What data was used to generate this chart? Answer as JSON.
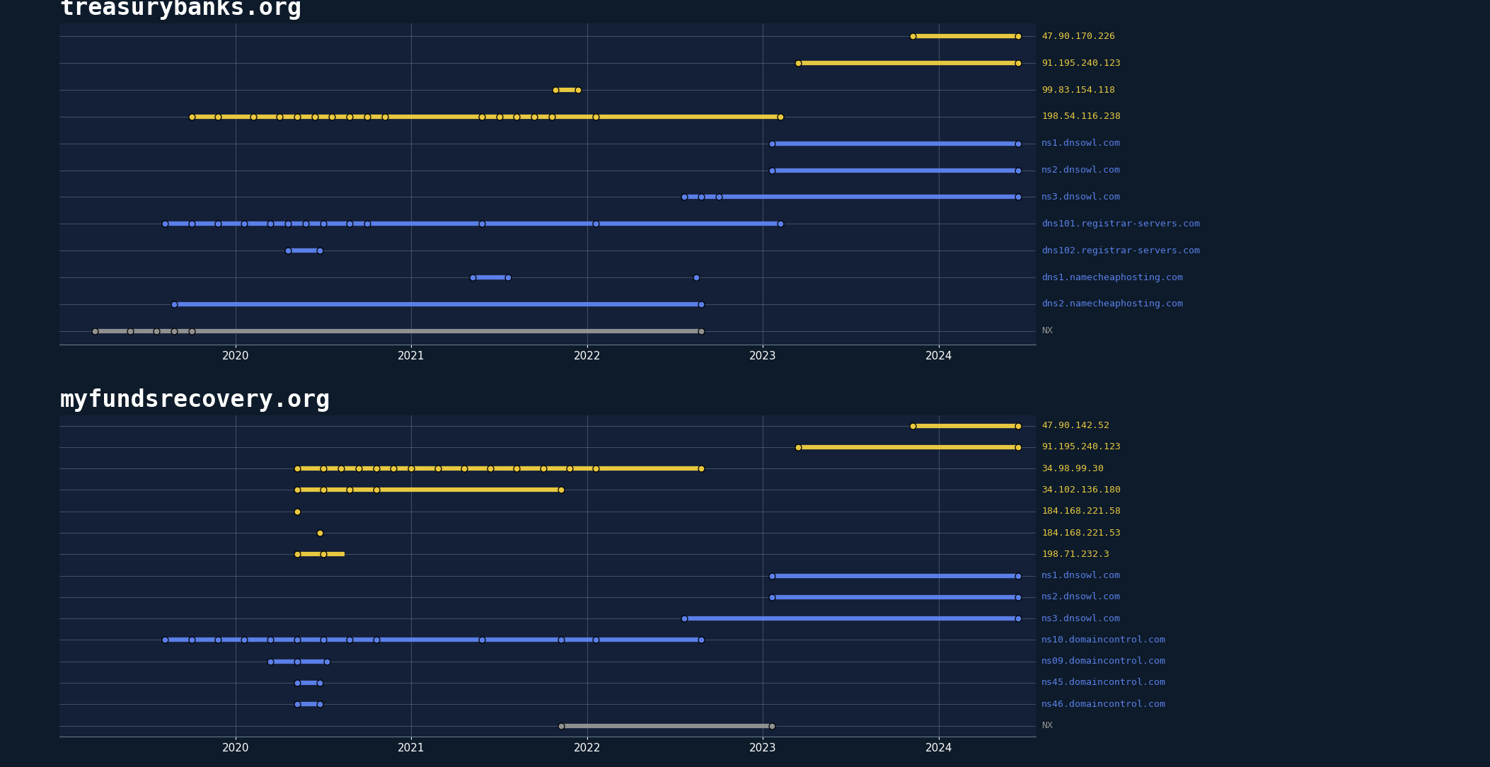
{
  "bg_color": "#0d1b2a",
  "panel_bg": "#132038",
  "grid_color": "#6a7a8a",
  "text_color": "#ffffff",
  "title_color": "#ffffff",
  "yellow": "#e8c840",
  "blue": "#5b7fe8",
  "gray": "#909090",
  "domain1": "treasurybanks.org",
  "domain2": "myfundsrecovery.org",
  "xlim": [
    2019.0,
    2024.55
  ],
  "xticks": [
    2020,
    2021,
    2022,
    2023,
    2024
  ],
  "panel1_records": [
    {
      "label": "47.90.170.226",
      "color": "yellow",
      "segments": [
        {
          "s": 2023.85,
          "e": 2024.45,
          "dots": [
            2023.85,
            2024.45
          ]
        }
      ]
    },
    {
      "label": "91.195.240.123",
      "color": "yellow",
      "segments": [
        {
          "s": 2023.2,
          "e": 2024.45,
          "dots": [
            2023.2,
            2024.45
          ]
        }
      ]
    },
    {
      "label": "99.83.154.118",
      "color": "yellow",
      "segments": [
        {
          "s": 2021.82,
          "e": 2021.95,
          "dots": [
            2021.82,
            2021.95
          ]
        }
      ]
    },
    {
      "label": "198.54.116.238",
      "color": "yellow",
      "segments": [
        {
          "s": 2019.75,
          "e": 2023.1,
          "dots": [
            2019.75,
            2019.9,
            2020.1,
            2020.25,
            2020.35,
            2020.45,
            2020.55,
            2020.65,
            2020.75,
            2020.85,
            2021.4,
            2021.5,
            2021.6,
            2021.7,
            2021.8,
            2022.05,
            2023.1
          ]
        }
      ]
    },
    {
      "label": "ns1.dnsowl.com",
      "color": "blue",
      "segments": [
        {
          "s": 2023.05,
          "e": 2024.45,
          "dots": [
            2023.05,
            2024.45
          ]
        }
      ]
    },
    {
      "label": "ns2.dnsowl.com",
      "color": "blue",
      "segments": [
        {
          "s": 2023.05,
          "e": 2024.45,
          "dots": [
            2023.05,
            2024.45
          ]
        }
      ]
    },
    {
      "label": "ns3.dnsowl.com",
      "color": "blue",
      "segments": [
        {
          "s": 2022.55,
          "e": 2024.45,
          "dots": [
            2022.55,
            2022.65,
            2022.75,
            2024.45
          ]
        }
      ]
    },
    {
      "label": "dns101.registrar-servers.com",
      "color": "blue",
      "segments": [
        {
          "s": 2019.6,
          "e": 2023.1,
          "dots": [
            2019.6,
            2019.75,
            2019.9,
            2020.05,
            2020.2,
            2020.3,
            2020.4,
            2020.5,
            2020.65,
            2020.75,
            2021.4,
            2022.05,
            2023.1
          ]
        }
      ]
    },
    {
      "label": "dns102.registrar-servers.com",
      "color": "blue",
      "segments": [
        {
          "s": 2020.3,
          "e": 2020.48,
          "dots": [
            2020.3,
            2020.48
          ]
        }
      ]
    },
    {
      "label": "dns1.namecheaphosting.com",
      "color": "blue",
      "segments": [
        {
          "s": 2021.35,
          "e": 2021.55,
          "dots": [
            2021.35,
            2021.55
          ]
        },
        {
          "s": 2022.62,
          "e": 2022.62,
          "dots": [
            2022.62
          ]
        }
      ]
    },
    {
      "label": "dns2.namecheaphosting.com",
      "color": "blue",
      "segments": [
        {
          "s": 2019.65,
          "e": 2022.65,
          "dots": [
            2019.65,
            2022.65
          ]
        }
      ]
    },
    {
      "label": "NX",
      "color": "gray",
      "segments": [
        {
          "s": 2019.2,
          "e": 2022.65,
          "dots": [
            2019.2,
            2019.4,
            2019.55,
            2019.65,
            2019.75,
            2022.65
          ]
        }
      ]
    }
  ],
  "panel2_records": [
    {
      "label": "47.90.142.52",
      "color": "yellow",
      "segments": [
        {
          "s": 2023.85,
          "e": 2024.45,
          "dots": [
            2023.85,
            2024.45
          ]
        }
      ]
    },
    {
      "label": "91.195.240.123",
      "color": "yellow",
      "segments": [
        {
          "s": 2023.2,
          "e": 2024.45,
          "dots": [
            2023.2,
            2024.45
          ]
        }
      ]
    },
    {
      "label": "34.98.99.30",
      "color": "yellow",
      "segments": [
        {
          "s": 2020.35,
          "e": 2022.65,
          "dots": [
            2020.35,
            2020.5,
            2020.6,
            2020.7,
            2020.8,
            2020.9,
            2021.0,
            2021.15,
            2021.3,
            2021.45,
            2021.6,
            2021.75,
            2021.9,
            2022.05,
            2022.65
          ]
        }
      ]
    },
    {
      "label": "34.102.136.180",
      "color": "yellow",
      "segments": [
        {
          "s": 2020.35,
          "e": 2021.85,
          "dots": [
            2020.35,
            2020.5,
            2020.65,
            2020.8,
            2021.85
          ]
        }
      ]
    },
    {
      "label": "184.168.221.58",
      "color": "yellow",
      "segments": [
        {
          "s": 2020.35,
          "e": 2020.35,
          "dots": [
            2020.35
          ]
        }
      ]
    },
    {
      "label": "184.168.221.53",
      "color": "yellow",
      "segments": [
        {
          "s": 2020.48,
          "e": 2020.48,
          "dots": [
            2020.48
          ]
        }
      ]
    },
    {
      "label": "198.71.232.3",
      "color": "yellow",
      "segments": [
        {
          "s": 2020.35,
          "e": 2020.62,
          "dots": [
            2020.35,
            2020.5
          ]
        }
      ]
    },
    {
      "label": "ns1.dnsowl.com",
      "color": "blue",
      "segments": [
        {
          "s": 2023.05,
          "e": 2024.45,
          "dots": [
            2023.05,
            2024.45
          ]
        }
      ]
    },
    {
      "label": "ns2.dnsowl.com",
      "color": "blue",
      "segments": [
        {
          "s": 2023.05,
          "e": 2024.45,
          "dots": [
            2023.05,
            2024.45
          ]
        }
      ]
    },
    {
      "label": "ns3.dnsowl.com",
      "color": "blue",
      "segments": [
        {
          "s": 2022.55,
          "e": 2024.45,
          "dots": [
            2022.55,
            2024.45
          ]
        }
      ]
    },
    {
      "label": "ns10.domaincontrol.com",
      "color": "blue",
      "segments": [
        {
          "s": 2019.6,
          "e": 2022.65,
          "dots": [
            2019.6,
            2019.75,
            2019.9,
            2020.05,
            2020.2,
            2020.35,
            2020.5,
            2020.65,
            2020.8,
            2021.4,
            2021.85,
            2022.05,
            2022.65
          ]
        }
      ]
    },
    {
      "label": "ns09.domaincontrol.com",
      "color": "blue",
      "segments": [
        {
          "s": 2020.2,
          "e": 2020.52,
          "dots": [
            2020.2,
            2020.35,
            2020.52
          ]
        }
      ]
    },
    {
      "label": "ns45.domaincontrol.com",
      "color": "blue",
      "segments": [
        {
          "s": 2020.35,
          "e": 2020.48,
          "dots": [
            2020.35,
            2020.48
          ]
        }
      ]
    },
    {
      "label": "ns46.domaincontrol.com",
      "color": "blue",
      "segments": [
        {
          "s": 2020.35,
          "e": 2020.48,
          "dots": [
            2020.35,
            2020.48
          ]
        }
      ]
    },
    {
      "label": "NX",
      "color": "gray",
      "segments": [
        {
          "s": 2021.85,
          "e": 2023.05,
          "dots": [
            2021.85,
            2023.05
          ]
        }
      ]
    }
  ],
  "lw": 4.5,
  "ms": 6.5,
  "title_fontsize": 24,
  "label_fontsize": 9.5,
  "tick_fontsize": 11
}
